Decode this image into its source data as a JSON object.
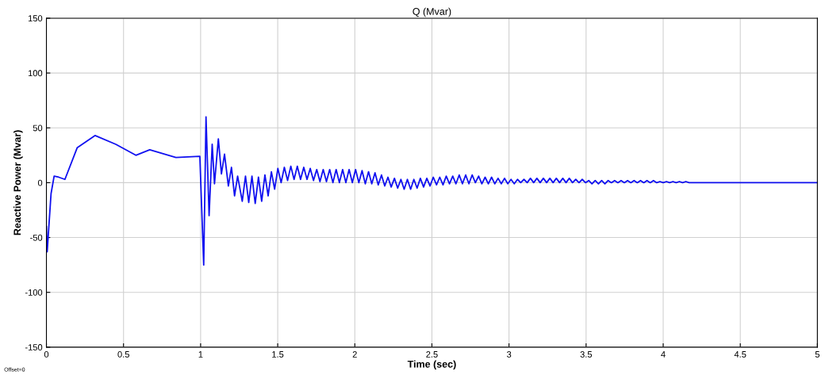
{
  "chart_data": {
    "type": "line",
    "title": "Q (Mvar)",
    "xlabel": "Time (sec)",
    "ylabel": "Reactive Power (Mvar)",
    "annotations": [
      "Offset=0"
    ],
    "xlim": [
      0,
      5
    ],
    "xticks": [
      0,
      0.5,
      1,
      1.5,
      2,
      2.5,
      3,
      3.5,
      4,
      4.5,
      5
    ],
    "ylim": [
      -150,
      150
    ],
    "yticks": [
      -150,
      -100,
      -50,
      0,
      50,
      100,
      150
    ],
    "grid": true,
    "marker": "none",
    "line_style": "solid",
    "series": [
      {
        "color": "#1010f0",
        "x": [
          0,
          0.005,
          0.03,
          0.05,
          0.08,
          0.12,
          0.2,
          0.315,
          0.45,
          0.58,
          0.67,
          0.84,
          0.995,
          1.02,
          1.035,
          1.055,
          1.075,
          1.09,
          1.115,
          1.135,
          1.155,
          1.18,
          1.2,
          1.22,
          1.24,
          1.27,
          1.291,
          1.312,
          1.333,
          1.354,
          1.375,
          1.396,
          1.417,
          1.438,
          1.459,
          1.48,
          1.501,
          1.522,
          1.543,
          1.564,
          1.585,
          1.606,
          1.627,
          1.648,
          1.669,
          1.69,
          1.711,
          1.732,
          1.753,
          1.774,
          1.795,
          1.816,
          1.837,
          1.858,
          1.879,
          1.9,
          1.921,
          1.942,
          1.963,
          1.984,
          2.005,
          2.026,
          2.047,
          2.068,
          2.089,
          2.11,
          2.131,
          2.152,
          2.173,
          2.194,
          2.215,
          2.236,
          2.257,
          2.278,
          2.299,
          2.32,
          2.341,
          2.362,
          2.383,
          2.404,
          2.425,
          2.446,
          2.467,
          2.488,
          2.509,
          2.53,
          2.551,
          2.572,
          2.593,
          2.614,
          2.635,
          2.656,
          2.677,
          2.698,
          2.719,
          2.74,
          2.761,
          2.782,
          2.803,
          2.824,
          2.845,
          2.866,
          2.887,
          2.908,
          2.929,
          2.95,
          2.971,
          2.992,
          3.013,
          3.034,
          3.055,
          3.076,
          3.097,
          3.118,
          3.139,
          3.16,
          3.181,
          3.202,
          3.223,
          3.244,
          3.265,
          3.286,
          3.307,
          3.328,
          3.349,
          3.37,
          3.391,
          3.412,
          3.433,
          3.454,
          3.475,
          3.496,
          3.517,
          3.538,
          3.559,
          3.58,
          3.601,
          3.622,
          3.643,
          3.664,
          3.685,
          3.706,
          3.727,
          3.748,
          3.769,
          3.79,
          3.811,
          3.832,
          3.853,
          3.874,
          3.895,
          3.916,
          3.937,
          3.958,
          3.979,
          4.0,
          4.021,
          4.042,
          4.063,
          4.084,
          4.105,
          4.126,
          4.147,
          4.168,
          4.3,
          5.0
        ],
        "values": [
          -40,
          -63,
          -10,
          6,
          5,
          3,
          32,
          43,
          35,
          25,
          30,
          23,
          24,
          -75,
          60,
          -30,
          35,
          -1,
          40,
          8,
          26,
          -3,
          14,
          -12,
          6,
          -17,
          6,
          -18,
          6,
          -19,
          5,
          -17,
          7,
          -12,
          10,
          -6,
          13,
          0,
          14,
          2,
          15,
          3,
          15,
          3,
          14,
          3,
          13,
          2,
          12,
          1,
          12,
          1,
          12,
          0,
          12,
          0,
          12,
          0,
          12,
          0,
          12,
          0,
          11,
          -1,
          10,
          -1,
          9,
          -2,
          7,
          -3,
          5,
          -4,
          4,
          -5,
          3,
          -6,
          3,
          -6,
          3,
          -5,
          4,
          -4,
          4,
          -3,
          5,
          -2,
          5,
          -2,
          6,
          -1,
          6,
          -1,
          7,
          -1,
          7,
          -1,
          7,
          0,
          6,
          -1,
          5,
          -1,
          5,
          -1,
          4,
          -1,
          4,
          -1,
          3,
          -1,
          3,
          0,
          3,
          0,
          4,
          0,
          4,
          0,
          4,
          0,
          4,
          0,
          4,
          0,
          4,
          0,
          4,
          0,
          3,
          0,
          3,
          0,
          2,
          -1,
          2,
          -1,
          2,
          -1,
          2,
          0,
          2,
          0,
          2,
          0,
          2,
          0,
          2,
          0,
          2,
          0,
          2,
          0,
          2,
          0,
          1,
          0,
          1,
          0,
          1,
          0,
          1,
          0,
          1,
          0,
          0,
          0
        ]
      }
    ]
  }
}
